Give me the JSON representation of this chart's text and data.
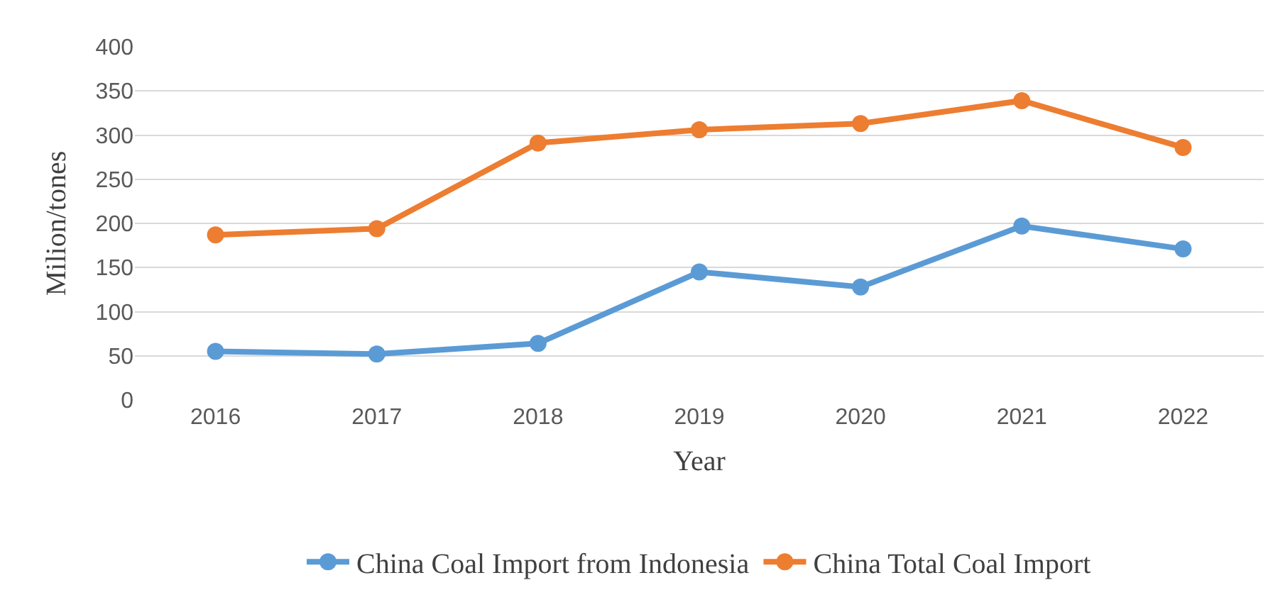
{
  "chart_data": {
    "type": "line",
    "xlabel": "Year",
    "ylabel": "Milion/tones",
    "categories": [
      "2016",
      "2017",
      "2018",
      "2019",
      "2020",
      "2021",
      "2022"
    ],
    "series": [
      {
        "name": "China Coal Import from Indonesia",
        "color": "#5b9bd5",
        "values": [
          55,
          52,
          64,
          145,
          128,
          197,
          171
        ]
      },
      {
        "name": "China Total Coal Import",
        "color": "#ed7d31",
        "values": [
          187,
          194,
          291,
          306,
          313,
          339,
          286
        ]
      }
    ],
    "ylim": [
      0,
      400
    ],
    "yticks": [
      0,
      50,
      100,
      150,
      200,
      250,
      300,
      350,
      400
    ],
    "grid": "y",
    "legend": "bottom",
    "marker": "circle",
    "line_style": "solid"
  }
}
